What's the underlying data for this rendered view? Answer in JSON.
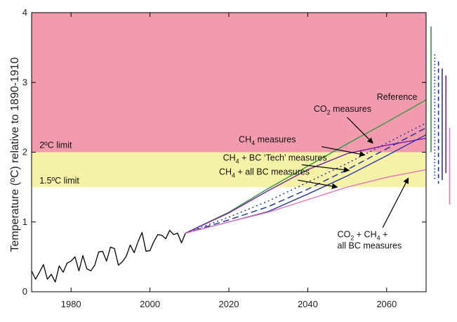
{
  "chart_data": {
    "type": "line",
    "title": "",
    "xlabel": "",
    "ylabel": "Temperature (ºC) relative to 1890-1910",
    "xlim": [
      1970,
      2070
    ],
    "ylim": [
      0,
      4
    ],
    "xticks": [
      1980,
      2000,
      2020,
      2040,
      2060
    ],
    "yticks": [
      0,
      1,
      2,
      3,
      4
    ],
    "grid": false,
    "bands": [
      {
        "label": "2ºC limit",
        "from": 2,
        "to": 4,
        "color": "#f29aae"
      },
      {
        "label": "1.5ºC limit",
        "from": 1.5,
        "to": 2,
        "color": "#f5f2a8"
      }
    ],
    "observed": {
      "color": "#000000",
      "x": [
        1970,
        1971,
        1972,
        1973,
        1974,
        1975,
        1976,
        1977,
        1978,
        1979,
        1980,
        1981,
        1982,
        1983,
        1984,
        1985,
        1986,
        1987,
        1988,
        1989,
        1990,
        1991,
        1992,
        1993,
        1994,
        1995,
        1996,
        1997,
        1998,
        1999,
        2000,
        2001,
        2002,
        2003,
        2004,
        2005,
        2006,
        2007,
        2008,
        2009
      ],
      "y": [
        0.3,
        0.18,
        0.28,
        0.39,
        0.18,
        0.25,
        0.14,
        0.37,
        0.28,
        0.41,
        0.44,
        0.5,
        0.3,
        0.52,
        0.33,
        0.3,
        0.38,
        0.57,
        0.58,
        0.44,
        0.64,
        0.62,
        0.38,
        0.43,
        0.51,
        0.67,
        0.56,
        0.72,
        0.85,
        0.58,
        0.59,
        0.72,
        0.82,
        0.81,
        0.76,
        0.88,
        0.82,
        0.84,
        0.7,
        0.84
      ]
    },
    "series": [
      {
        "label": "Reference",
        "color": "#2e9a3e",
        "dash": "solid",
        "x": [
          2009,
          2020,
          2030,
          2040,
          2050,
          2060,
          2070
        ],
        "y": [
          0.84,
          1.14,
          1.48,
          1.8,
          2.12,
          2.43,
          2.75
        ]
      },
      {
        "label": "CO2 measures",
        "color": "#7a1fa0",
        "dash": "solid",
        "x": [
          2009,
          2020,
          2030,
          2040,
          2050,
          2060,
          2070
        ],
        "y": [
          0.84,
          1.13,
          1.45,
          1.75,
          1.98,
          2.1,
          2.2
        ]
      },
      {
        "label": "CH4 + BC 'Tech' measures",
        "color": "#1a2f9e",
        "dash": "dot",
        "x": [
          2009,
          2020,
          2030,
          2040,
          2050,
          2060,
          2070
        ],
        "y": [
          0.84,
          1.07,
          1.3,
          1.57,
          1.84,
          2.13,
          2.42
        ]
      },
      {
        "label": "CH4 measures",
        "color": "#1a2f9e",
        "dash": "dash",
        "x": [
          2009,
          2020,
          2030,
          2040,
          2050,
          2060,
          2070
        ],
        "y": [
          0.84,
          1.03,
          1.22,
          1.47,
          1.75,
          2.05,
          2.35
        ]
      },
      {
        "label": "CH4 + all BC measures",
        "color": "#2a35a8",
        "dash": "solid",
        "x": [
          2009,
          2020,
          2030,
          2040,
          2050,
          2060,
          2070
        ],
        "y": [
          0.84,
          1.0,
          1.15,
          1.4,
          1.66,
          1.95,
          2.25
        ]
      },
      {
        "label": "CO2 + CH4 + all BC measures",
        "color": "#e070b8",
        "dash": "solid",
        "x": [
          2009,
          2020,
          2030,
          2040,
          2050,
          2060,
          2070
        ],
        "y": [
          0.84,
          1.0,
          1.14,
          1.32,
          1.5,
          1.64,
          1.75
        ]
      }
    ],
    "ranges": [
      {
        "color": "#2e9a3e",
        "dash": "solid",
        "from": 2.0,
        "to": 3.8
      },
      {
        "color": "#1a2f9e",
        "dash": "dot",
        "from": 1.6,
        "to": 3.4
      },
      {
        "color": "#1a2f9e",
        "dash": "dash",
        "from": 1.55,
        "to": 3.3
      },
      {
        "color": "#2a35a8",
        "dash": "solid",
        "from": 1.6,
        "to": 3.2
      },
      {
        "color": "#7a1fa0",
        "dash": "solid",
        "from": 1.7,
        "to": 3.1
      },
      {
        "color": "#e070b8",
        "dash": "solid",
        "from": 1.25,
        "to": 2.35
      }
    ],
    "band_labels": [
      {
        "text": "2ºC limit",
        "x": 1972,
        "y": 2.06
      },
      {
        "text": "1.5ºC limit",
        "x": 1972,
        "y": 1.55
      }
    ],
    "annotations": [
      {
        "id": "reference",
        "parts": [
          {
            "t": "Reference"
          }
        ],
        "x": 2057.5,
        "y": 2.75,
        "arrow": null
      },
      {
        "id": "co2",
        "parts": [
          {
            "t": "CO"
          },
          {
            "t": "2",
            "sub": true
          },
          {
            "t": " measures"
          }
        ],
        "x": 2041.5,
        "y": 2.58,
        "arrow": [
          2050,
          2.5,
          2056.5,
          2.13
        ]
      },
      {
        "id": "ch4",
        "parts": [
          {
            "t": "CH"
          },
          {
            "t": "4",
            "sub": true
          },
          {
            "t": " measures"
          }
        ],
        "x": 2022.5,
        "y": 2.14,
        "arrow": [
          2043.5,
          2.08,
          2054.5,
          1.96
        ]
      },
      {
        "id": "ch4bc-tech",
        "parts": [
          {
            "t": "CH"
          },
          {
            "t": "4",
            "sub": true
          },
          {
            "t": " + BC ‘Tech’ measures"
          }
        ],
        "x": 2018.5,
        "y": 1.88,
        "arrow": [
          2038.5,
          1.82,
          2050.5,
          1.74
        ]
      },
      {
        "id": "ch4-allbc",
        "parts": [
          {
            "t": "CH"
          },
          {
            "t": "4",
            "sub": true
          },
          {
            "t": " + all BC measures"
          }
        ],
        "x": 2017.5,
        "y": 1.68,
        "arrow": [
          2037.5,
          1.6,
          2047.5,
          1.5
        ]
      },
      {
        "id": "co2ch4bc",
        "parts": [
          {
            "t": "CO"
          },
          {
            "t": "2",
            "sub": true
          },
          {
            "t": " + CH"
          },
          {
            "t": "4",
            "sub": true
          },
          {
            "t": " +"
          },
          {
            "br": true
          },
          {
            "t": "all BC measures"
          }
        ],
        "x": 2047.5,
        "y": 0.78,
        "arrow": [
          2059,
          0.92,
          2065.5,
          1.63
        ]
      }
    ]
  }
}
